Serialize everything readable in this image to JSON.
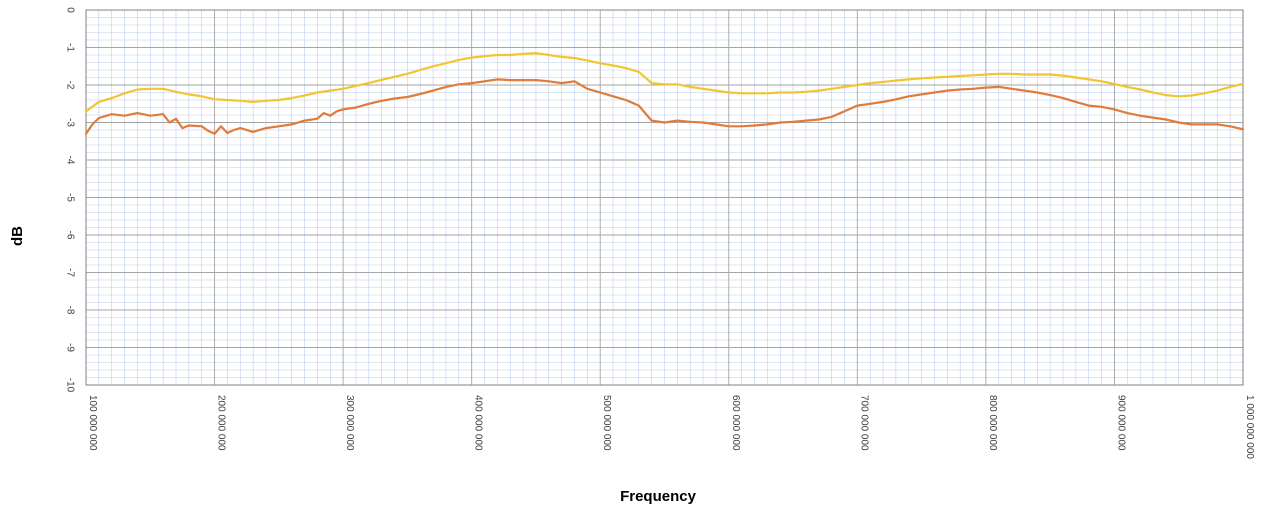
{
  "chart_data": {
    "type": "line",
    "title": "",
    "xlabel": "Frequency",
    "ylabel": "dB",
    "xlim": [
      100000000,
      1000000000
    ],
    "ylim": [
      -10,
      0
    ],
    "grid": true,
    "legend": "none",
    "x_ticks": [
      100000000,
      200000000,
      300000000,
      400000000,
      500000000,
      600000000,
      700000000,
      800000000,
      900000000,
      1000000000
    ],
    "x_tick_labels": [
      "100 000 000",
      "200 000 000",
      "300 000 000",
      "400 000 000",
      "500 000 000",
      "600 000 000",
      "700 000 000",
      "800 000 000",
      "900 000 000",
      "1 000 000 000"
    ],
    "y_ticks": [
      0,
      -1,
      -2,
      -3,
      -4,
      -5,
      -6,
      -7,
      -8,
      -9,
      -10
    ],
    "y_tick_labels": [
      "0",
      "-1",
      "-2",
      "-3",
      "-4",
      "-5",
      "-6",
      "-7",
      "-8",
      "-9",
      "-10"
    ],
    "colors": {
      "major_grid": "#a6a6a6",
      "minor_grid": "#b9cdec",
      "axis": "#808080"
    },
    "series": [
      {
        "color": "#f2c530",
        "x": [
          100000000,
          110000000,
          120000000,
          130000000,
          140000000,
          150000000,
          160000000,
          170000000,
          180000000,
          190000000,
          200000000,
          210000000,
          220000000,
          230000000,
          240000000,
          250000000,
          260000000,
          270000000,
          280000000,
          290000000,
          300000000,
          310000000,
          320000000,
          330000000,
          340000000,
          350000000,
          360000000,
          370000000,
          380000000,
          390000000,
          400000000,
          410000000,
          420000000,
          430000000,
          440000000,
          450000000,
          460000000,
          470000000,
          480000000,
          490000000,
          500000000,
          510000000,
          520000000,
          530000000,
          540000000,
          550000000,
          560000000,
          570000000,
          580000000,
          590000000,
          600000000,
          610000000,
          620000000,
          630000000,
          640000000,
          650000000,
          660000000,
          670000000,
          680000000,
          690000000,
          700000000,
          710000000,
          720000000,
          730000000,
          740000000,
          750000000,
          760000000,
          770000000,
          780000000,
          790000000,
          800000000,
          810000000,
          820000000,
          830000000,
          840000000,
          850000000,
          860000000,
          870000000,
          880000000,
          890000000,
          900000000,
          910000000,
          920000000,
          930000000,
          940000000,
          950000000,
          960000000,
          970000000,
          980000000,
          990000000,
          1000000000
        ],
        "y": [
          -2.7,
          -2.45,
          -2.35,
          -2.22,
          -2.12,
          -2.1,
          -2.1,
          -2.18,
          -2.25,
          -2.3,
          -2.38,
          -2.4,
          -2.42,
          -2.45,
          -2.42,
          -2.4,
          -2.35,
          -2.28,
          -2.2,
          -2.15,
          -2.1,
          -2.02,
          -1.95,
          -1.86,
          -1.78,
          -1.7,
          -1.6,
          -1.5,
          -1.42,
          -1.33,
          -1.27,
          -1.23,
          -1.2,
          -1.2,
          -1.17,
          -1.15,
          -1.2,
          -1.25,
          -1.28,
          -1.35,
          -1.42,
          -1.48,
          -1.55,
          -1.65,
          -1.95,
          -1.98,
          -1.98,
          -2.05,
          -2.1,
          -2.15,
          -2.2,
          -2.22,
          -2.22,
          -2.22,
          -2.2,
          -2.2,
          -2.18,
          -2.15,
          -2.1,
          -2.05,
          -2.0,
          -1.95,
          -1.92,
          -1.88,
          -1.85,
          -1.82,
          -1.8,
          -1.78,
          -1.76,
          -1.74,
          -1.72,
          -1.7,
          -1.7,
          -1.72,
          -1.72,
          -1.72,
          -1.75,
          -1.8,
          -1.85,
          -1.9,
          -1.97,
          -2.05,
          -2.12,
          -2.2,
          -2.27,
          -2.3,
          -2.28,
          -2.22,
          -2.15,
          -2.05,
          -1.97
        ]
      },
      {
        "color": "#e07b39",
        "x": [
          100000000,
          105000000,
          110000000,
          120000000,
          130000000,
          140000000,
          150000000,
          160000000,
          165000000,
          170000000,
          175000000,
          180000000,
          190000000,
          195000000,
          200000000,
          205000000,
          210000000,
          215000000,
          220000000,
          230000000,
          240000000,
          250000000,
          260000000,
          270000000,
          280000000,
          285000000,
          290000000,
          295000000,
          300000000,
          310000000,
          320000000,
          330000000,
          340000000,
          350000000,
          360000000,
          370000000,
          380000000,
          390000000,
          400000000,
          410000000,
          420000000,
          430000000,
          440000000,
          450000000,
          460000000,
          470000000,
          480000000,
          490000000,
          500000000,
          510000000,
          520000000,
          530000000,
          540000000,
          550000000,
          560000000,
          570000000,
          580000000,
          590000000,
          600000000,
          610000000,
          620000000,
          630000000,
          640000000,
          650000000,
          660000000,
          670000000,
          680000000,
          690000000,
          700000000,
          710000000,
          720000000,
          730000000,
          740000000,
          750000000,
          760000000,
          770000000,
          780000000,
          790000000,
          800000000,
          810000000,
          820000000,
          830000000,
          840000000,
          850000000,
          860000000,
          870000000,
          880000000,
          890000000,
          900000000,
          910000000,
          920000000,
          930000000,
          940000000,
          950000000,
          960000000,
          970000000,
          980000000,
          990000000,
          1000000000
        ],
        "y": [
          -3.3,
          -3.05,
          -2.88,
          -2.78,
          -2.82,
          -2.75,
          -2.82,
          -2.78,
          -3.0,
          -2.9,
          -3.15,
          -3.08,
          -3.1,
          -3.22,
          -3.3,
          -3.1,
          -3.28,
          -3.2,
          -3.15,
          -3.25,
          -3.15,
          -3.1,
          -3.05,
          -2.95,
          -2.9,
          -2.75,
          -2.82,
          -2.7,
          -2.65,
          -2.6,
          -2.5,
          -2.42,
          -2.36,
          -2.32,
          -2.24,
          -2.15,
          -2.05,
          -1.98,
          -1.95,
          -1.9,
          -1.85,
          -1.87,
          -1.87,
          -1.87,
          -1.9,
          -1.95,
          -1.9,
          -2.1,
          -2.2,
          -2.3,
          -2.4,
          -2.55,
          -2.95,
          -3.0,
          -2.95,
          -2.98,
          -3.0,
          -3.05,
          -3.1,
          -3.1,
          -3.08,
          -3.05,
          -3.0,
          -2.98,
          -2.95,
          -2.92,
          -2.85,
          -2.7,
          -2.55,
          -2.5,
          -2.45,
          -2.38,
          -2.3,
          -2.25,
          -2.2,
          -2.15,
          -2.12,
          -2.1,
          -2.07,
          -2.05,
          -2.1,
          -2.15,
          -2.2,
          -2.27,
          -2.35,
          -2.45,
          -2.55,
          -2.58,
          -2.65,
          -2.75,
          -2.82,
          -2.87,
          -2.92,
          -3.0,
          -3.05,
          -3.05,
          -3.05,
          -3.1,
          -3.18
        ]
      }
    ]
  }
}
